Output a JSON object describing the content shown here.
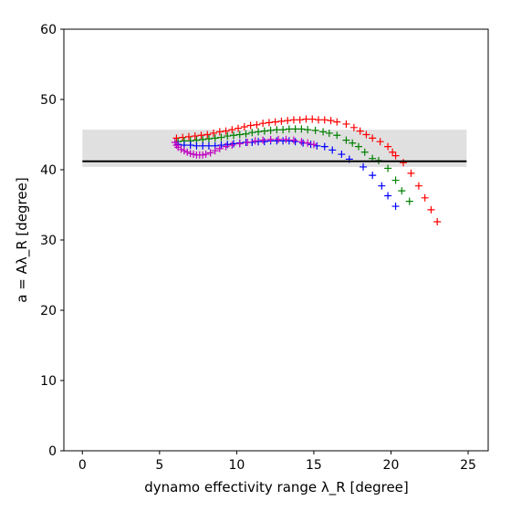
{
  "chart_data": {
    "type": "scatter",
    "title": "",
    "xlabel": "dynamo effectivity range λ_R [degree]",
    "ylabel": "a = Aλ_R [degree]",
    "xlim": [
      -1.2,
      26.3
    ],
    "ylim": [
      0,
      60
    ],
    "x_ticks": [
      "0",
      "5",
      "10",
      "15",
      "20",
      "25"
    ],
    "y_ticks": [
      "0",
      "10",
      "20",
      "30",
      "40",
      "50",
      "60"
    ],
    "marker": "plus",
    "grid": false,
    "legend": "none",
    "reference_band": {
      "x_range": [
        0,
        24.9
      ],
      "y_range": [
        40.4,
        45.7
      ],
      "color": "#e0e0e0"
    },
    "reference_line": {
      "x_range": [
        0,
        24.9
      ],
      "y": 41.2,
      "color": "#000000"
    },
    "series": [
      {
        "color": "#ff0000",
        "points": [
          [
            6.1,
            44.5
          ],
          [
            6.5,
            44.6
          ],
          [
            6.9,
            44.7
          ],
          [
            7.3,
            44.8
          ],
          [
            7.7,
            44.9
          ],
          [
            8.1,
            45.0
          ],
          [
            8.5,
            45.2
          ],
          [
            8.9,
            45.4
          ],
          [
            9.3,
            45.5
          ],
          [
            9.7,
            45.7
          ],
          [
            10.1,
            45.9
          ],
          [
            10.5,
            46.1
          ],
          [
            10.9,
            46.3
          ],
          [
            11.3,
            46.4
          ],
          [
            11.7,
            46.6
          ],
          [
            12.1,
            46.7
          ],
          [
            12.5,
            46.8
          ],
          [
            12.9,
            46.9
          ],
          [
            13.3,
            47.0
          ],
          [
            13.7,
            47.1
          ],
          [
            14.1,
            47.1
          ],
          [
            14.5,
            47.2
          ],
          [
            14.9,
            47.2
          ],
          [
            15.3,
            47.1
          ],
          [
            15.7,
            47.1
          ],
          [
            16.1,
            47.0
          ],
          [
            16.5,
            46.8
          ],
          [
            17.1,
            46.5
          ],
          [
            17.6,
            46.0
          ],
          [
            18.0,
            45.5
          ],
          [
            18.4,
            45.0
          ],
          [
            18.8,
            44.5
          ],
          [
            19.3,
            44.0
          ],
          [
            19.8,
            43.3
          ],
          [
            20.1,
            42.5
          ],
          [
            20.3,
            42.0
          ],
          [
            20.8,
            41.0
          ],
          [
            21.3,
            39.5
          ],
          [
            21.8,
            37.7
          ],
          [
            22.2,
            36.0
          ],
          [
            22.6,
            34.3
          ],
          [
            23.0,
            32.6
          ]
        ]
      },
      {
        "color": "#008000",
        "points": [
          [
            6.2,
            44.0
          ],
          [
            6.6,
            44.1
          ],
          [
            7.0,
            44.1
          ],
          [
            7.4,
            44.2
          ],
          [
            7.8,
            44.3
          ],
          [
            8.2,
            44.4
          ],
          [
            8.6,
            44.5
          ],
          [
            9.0,
            44.6
          ],
          [
            9.4,
            44.8
          ],
          [
            9.8,
            44.9
          ],
          [
            10.2,
            45.0
          ],
          [
            10.6,
            45.1
          ],
          [
            11.0,
            45.3
          ],
          [
            11.4,
            45.4
          ],
          [
            11.8,
            45.5
          ],
          [
            12.2,
            45.6
          ],
          [
            12.6,
            45.7
          ],
          [
            13.0,
            45.7
          ],
          [
            13.4,
            45.8
          ],
          [
            13.8,
            45.8
          ],
          [
            14.2,
            45.8
          ],
          [
            14.6,
            45.7
          ],
          [
            15.1,
            45.6
          ],
          [
            15.6,
            45.4
          ],
          [
            16.0,
            45.2
          ],
          [
            16.5,
            44.9
          ],
          [
            17.1,
            44.2
          ],
          [
            17.5,
            43.8
          ],
          [
            17.9,
            43.3
          ],
          [
            18.3,
            42.5
          ],
          [
            18.8,
            41.6
          ],
          [
            19.2,
            41.3
          ],
          [
            19.8,
            40.2
          ],
          [
            20.3,
            38.5
          ],
          [
            20.7,
            37.0
          ],
          [
            21.2,
            35.5
          ]
        ]
      },
      {
        "color": "#0000ff",
        "points": [
          [
            6.2,
            43.6
          ],
          [
            6.6,
            43.5
          ],
          [
            7.0,
            43.5
          ],
          [
            7.4,
            43.4
          ],
          [
            7.8,
            43.4
          ],
          [
            8.2,
            43.4
          ],
          [
            8.6,
            43.4
          ],
          [
            9.0,
            43.5
          ],
          [
            9.4,
            43.6
          ],
          [
            9.8,
            43.7
          ],
          [
            10.2,
            43.8
          ],
          [
            10.6,
            43.9
          ],
          [
            11.0,
            43.9
          ],
          [
            11.4,
            44.0
          ],
          [
            11.8,
            44.0
          ],
          [
            12.2,
            44.1
          ],
          [
            12.6,
            44.1
          ],
          [
            13.0,
            44.1
          ],
          [
            13.4,
            44.1
          ],
          [
            13.8,
            44.0
          ],
          [
            14.3,
            43.8
          ],
          [
            14.8,
            43.6
          ],
          [
            15.2,
            43.4
          ],
          [
            15.7,
            43.3
          ],
          [
            16.2,
            42.8
          ],
          [
            16.8,
            42.2
          ],
          [
            17.3,
            41.5
          ],
          [
            18.2,
            40.4
          ],
          [
            18.8,
            39.2
          ],
          [
            19.4,
            37.7
          ],
          [
            19.8,
            36.3
          ],
          [
            20.3,
            34.8
          ]
        ]
      },
      {
        "color": "#c000c0",
        "points": [
          [
            6.0,
            43.9
          ],
          [
            6.1,
            43.5
          ],
          [
            6.2,
            43.2
          ],
          [
            6.4,
            42.9
          ],
          [
            6.6,
            42.7
          ],
          [
            6.8,
            42.5
          ],
          [
            7.0,
            42.3
          ],
          [
            7.2,
            42.2
          ],
          [
            7.4,
            42.1
          ],
          [
            7.6,
            42.1
          ],
          [
            7.8,
            42.1
          ],
          [
            8.0,
            42.2
          ],
          [
            8.3,
            42.4
          ],
          [
            8.6,
            42.7
          ],
          [
            8.9,
            43.0
          ],
          [
            9.3,
            43.3
          ],
          [
            9.7,
            43.5
          ],
          [
            10.2,
            43.7
          ],
          [
            10.7,
            43.9
          ],
          [
            11.2,
            44.1
          ],
          [
            11.7,
            44.2
          ],
          [
            12.2,
            44.3
          ],
          [
            12.7,
            44.3
          ],
          [
            13.2,
            44.3
          ],
          [
            13.7,
            44.2
          ],
          [
            14.2,
            44.0
          ],
          [
            14.6,
            43.8
          ],
          [
            15.0,
            43.6
          ]
        ]
      }
    ]
  }
}
